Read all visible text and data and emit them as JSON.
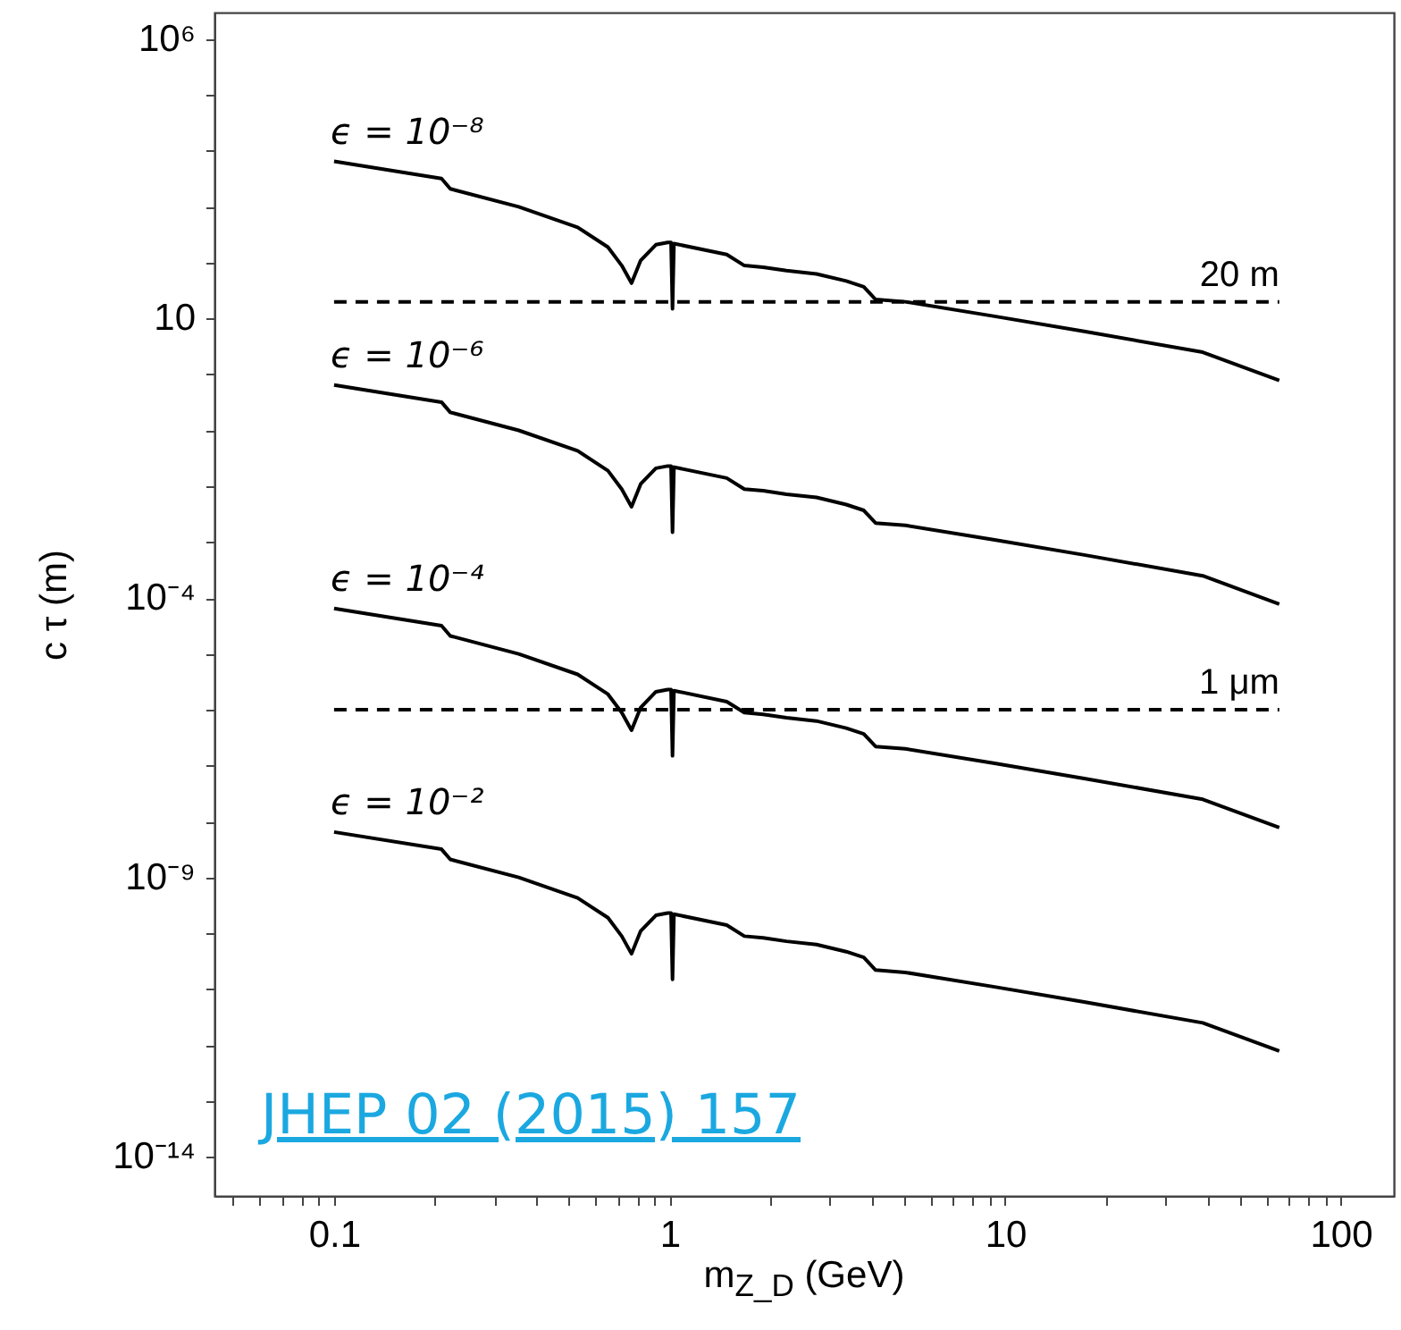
{
  "chart_data": {
    "type": "line",
    "xlabel": "m$_{Z_D}$ (GeV)",
    "ylabel": "c τ (m)",
    "log": "xy",
    "grid": false,
    "legend": false,
    "annotations": [
      "JHEP 02 (2015) 157"
    ],
    "x": [
      0.1,
      0.209,
      0.222,
      0.355,
      0.532,
      0.655,
      0.72,
      0.77,
      0.82,
      0.91,
      0.987,
      1.01,
      1.02,
      1.03,
      1.48,
      1.67,
      1.9,
      2.23,
      2.74,
      3.36,
      3.79,
      4.11,
      5.04,
      9.3,
      17.2,
      38.8,
      65.6
    ],
    "series": [
      {
        "name": "ϵ = 10⁻⁸",
        "color": "#000000",
        "values": [
          6500,
          3200,
          2100,
          1000,
          430,
          190,
          89,
          43,
          110,
          210,
          230,
          230,
          15,
          220,
          140,
          89,
          83,
          72,
          63,
          47,
          37,
          22,
          20,
          11,
          5.9,
          2.5,
          0.78
        ]
      },
      {
        "name": "ϵ = 10⁻⁶",
        "color": "#000000",
        "values": [
          0.65,
          0.32,
          0.21,
          0.1,
          0.043,
          0.019,
          0.0089,
          0.0043,
          0.011,
          0.021,
          0.023,
          0.023,
          0.0015,
          0.022,
          0.014,
          0.0089,
          0.0083,
          0.0072,
          0.0063,
          0.0047,
          0.0037,
          0.0022,
          0.002,
          0.0011,
          0.00059,
          0.00025,
          7.8e-05
        ]
      },
      {
        "name": "ϵ = 10⁻⁴",
        "color": "#000000",
        "values": [
          6.5e-05,
          3.2e-05,
          2.1e-05,
          1e-05,
          4.3e-06,
          1.9e-06,
          8.9e-07,
          4.3e-07,
          1.1e-06,
          2.1e-06,
          2.3e-06,
          2.3e-06,
          1.5e-07,
          2.2e-06,
          1.4e-06,
          8.9e-07,
          8.3e-07,
          7.2e-07,
          6.3e-07,
          4.7e-07,
          3.7e-07,
          2.2e-07,
          2e-07,
          1.1e-07,
          5.9e-08,
          2.5e-08,
          7.8e-09
        ]
      },
      {
        "name": "ϵ = 10⁻²",
        "color": "#000000",
        "values": [
          6.5e-09,
          3.2e-09,
          2.1e-09,
          1e-09,
          4.3e-10,
          1.9e-10,
          8.9e-11,
          4.3e-11,
          1.1e-10,
          2.1e-10,
          2.3e-10,
          2.3e-10,
          1.5e-11,
          2.2e-10,
          1.4e-10,
          8.9e-11,
          8.3e-11,
          7.2e-11,
          6.3e-11,
          4.7e-11,
          3.7e-11,
          2.2e-11,
          2e-11,
          1.1e-11,
          5.9e-12,
          2.5e-12,
          7.8e-13
        ]
      }
    ],
    "ref_lines": [
      {
        "axis": "y",
        "value": 20,
        "label": "20 m",
        "color": "#000000",
        "line_style": "dashed"
      },
      {
        "axis": "y",
        "value": 1e-06,
        "label": "1 μm",
        "color": "#000000",
        "line_style": "dashed"
      }
    ],
    "xlim": [
      0.044,
      144
    ],
    "xticks": [
      {
        "value": 0.05,
        "label": null
      },
      {
        "value": 0.06,
        "label": null
      },
      {
        "value": 0.07,
        "label": null
      },
      {
        "value": 0.08,
        "label": null
      },
      {
        "value": 0.09,
        "label": null
      },
      0.1,
      {
        "value": 0.2,
        "label": null
      },
      {
        "value": 0.3,
        "label": null
      },
      {
        "value": 0.4,
        "label": null
      },
      {
        "value": 0.5,
        "label": null
      },
      {
        "value": 0.6,
        "label": null
      },
      {
        "value": 0.7,
        "label": null
      },
      {
        "value": 0.8,
        "label": null
      },
      {
        "value": 0.9,
        "label": null
      },
      1,
      {
        "value": 2,
        "label": null
      },
      {
        "value": 3,
        "label": null
      },
      {
        "value": 4,
        "label": null
      },
      {
        "value": 5,
        "label": null
      },
      {
        "value": 6,
        "label": null
      },
      {
        "value": 7,
        "label": null
      },
      {
        "value": 8,
        "label": null
      },
      {
        "value": 9,
        "label": null
      },
      10,
      {
        "value": 20,
        "label": null
      },
      {
        "value": 30,
        "label": null
      },
      {
        "value": 40,
        "label": null
      },
      {
        "value": 50,
        "label": null
      },
      {
        "value": 60,
        "label": null
      },
      {
        "value": 70,
        "label": null
      },
      {
        "value": 80,
        "label": null
      },
      {
        "value": 90,
        "label": null
      },
      100
    ],
    "ylim": [
      2e-15,
      3000000.0
    ],
    "yticks": [
      {
        "value": 1000000.0,
        "label": "10⁶"
      },
      {
        "value": 100000.0,
        "label": null
      },
      {
        "value": 10000.0,
        "label": null
      },
      {
        "value": 1000.0,
        "label": null
      },
      {
        "value": 100,
        "label": null
      },
      10,
      {
        "value": 1,
        "label": null
      },
      {
        "value": 0.1,
        "label": null
      },
      {
        "value": 0.01,
        "label": null
      },
      {
        "value": 0.001,
        "label": null
      },
      {
        "value": 0.0001,
        "label": "10⁻⁴"
      },
      {
        "value": 1e-05,
        "label": null
      },
      {
        "value": 1e-06,
        "label": null
      },
      {
        "value": 1e-07,
        "label": null
      },
      {
        "value": 1e-08,
        "label": null
      },
      {
        "value": 1e-09,
        "label": "10⁻⁹"
      },
      {
        "value": 1e-10,
        "label": null
      },
      {
        "value": 1e-11,
        "label": null
      },
      {
        "value": 1e-12,
        "label": null
      },
      {
        "value": 1e-13,
        "label": null
      },
      {
        "value": 1e-14,
        "label": "10⁻¹⁴"
      }
    ]
  }
}
